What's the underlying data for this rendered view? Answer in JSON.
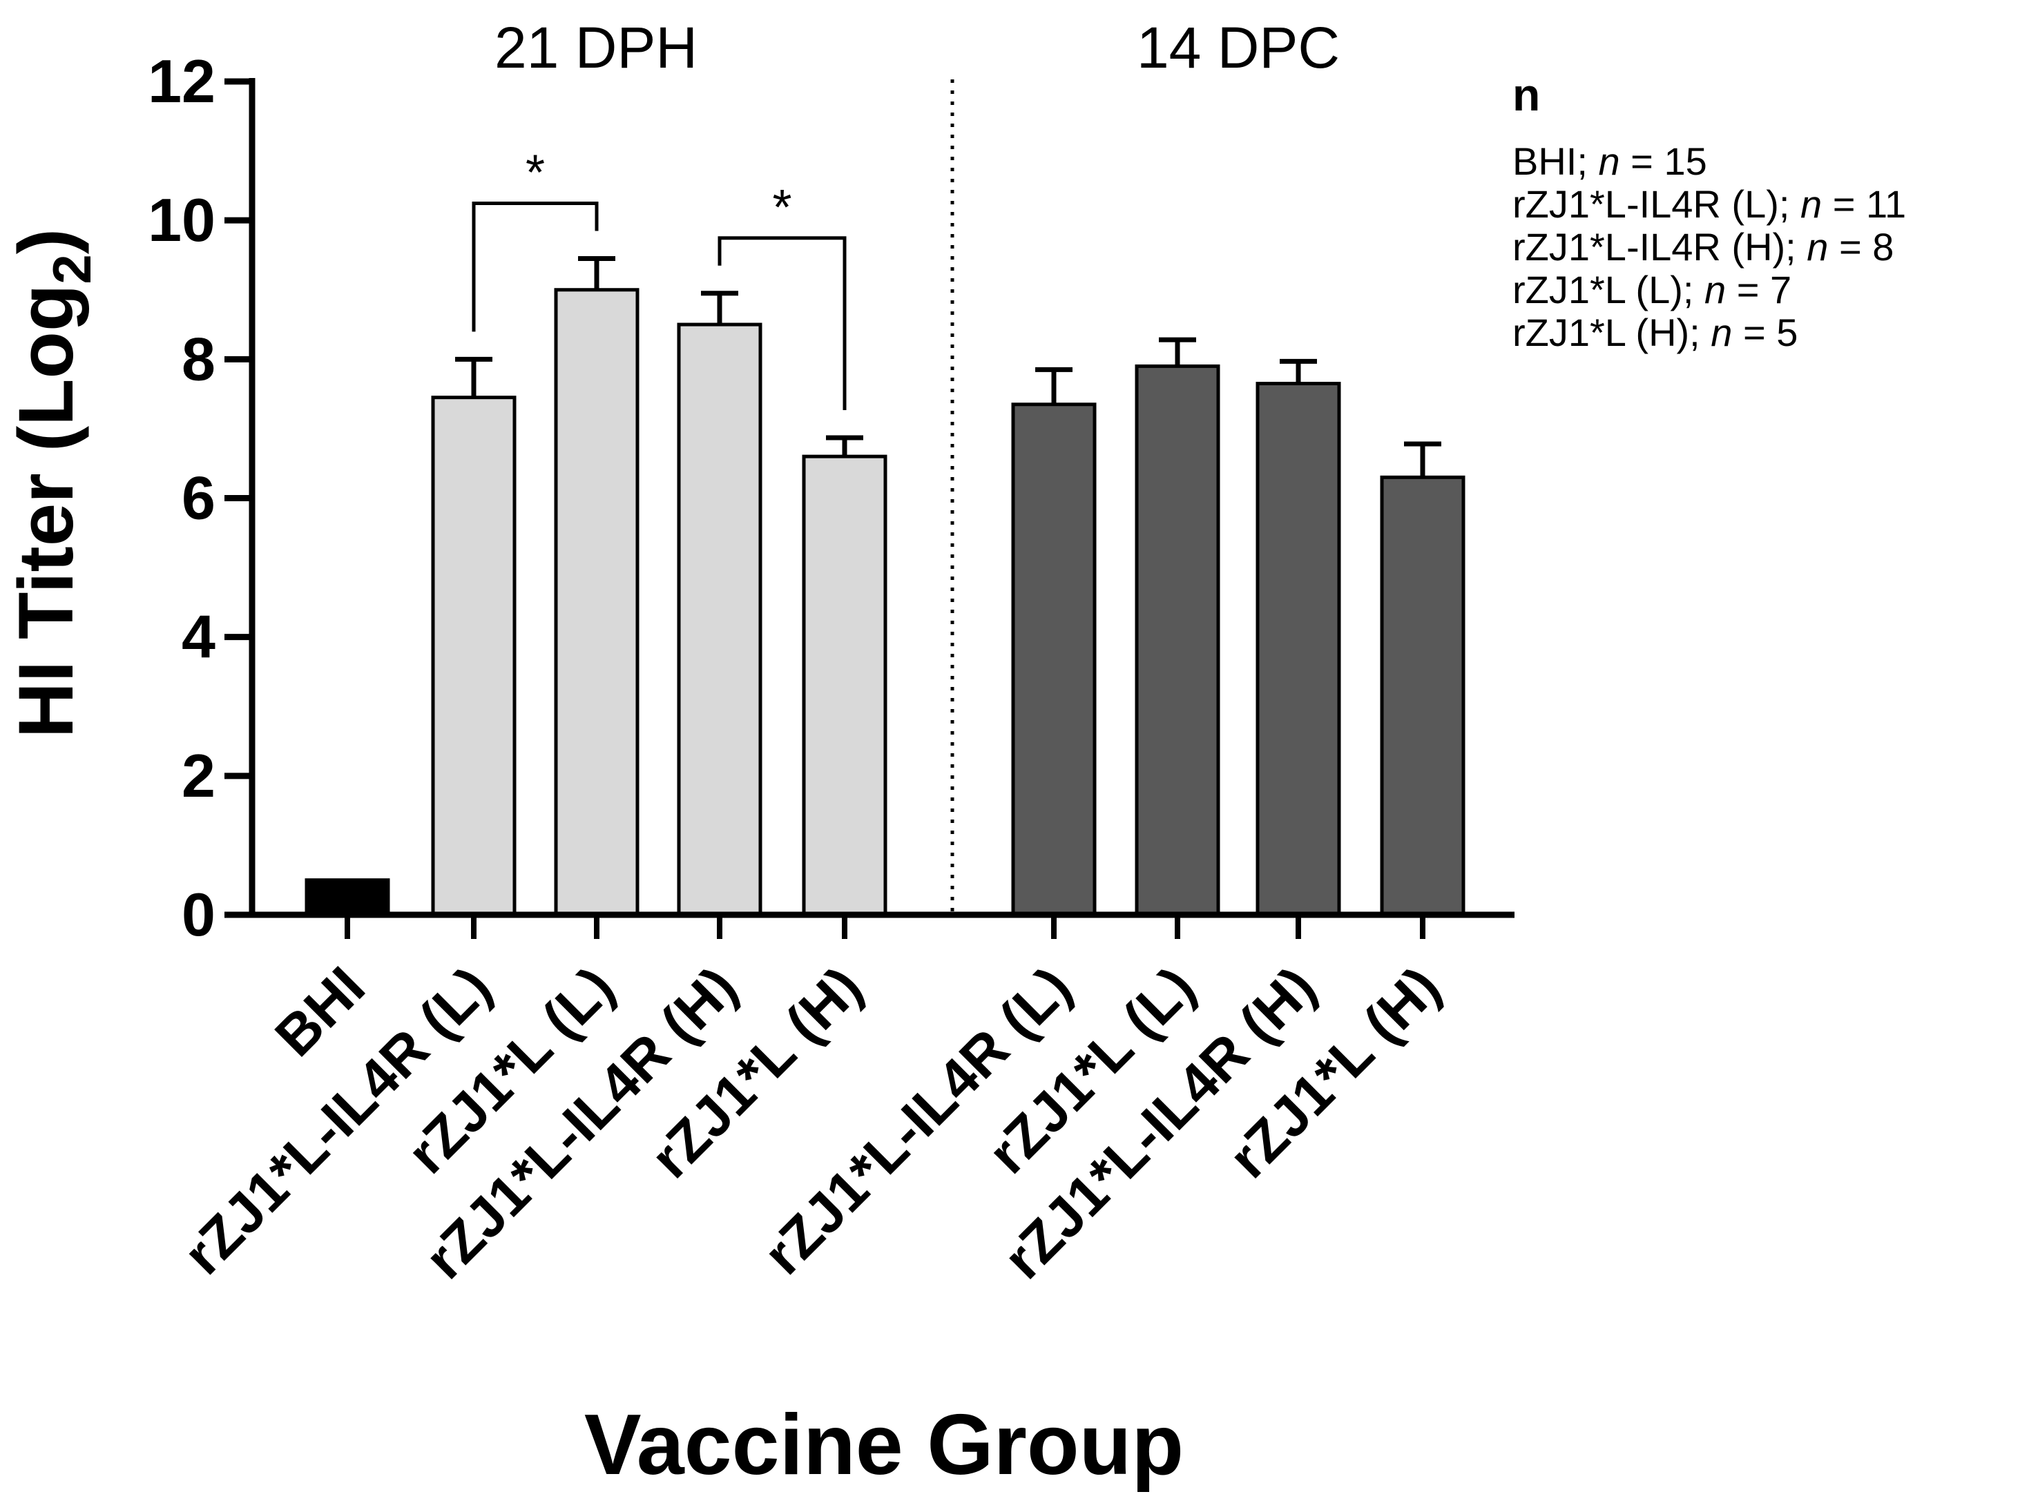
{
  "chart_data": {
    "type": "bar",
    "ylabel_main": "HI Titer (Log",
    "ylabel_sub": "2",
    "ylabel_close": ")",
    "xlabel": "Vaccine Group",
    "ylim": [
      0,
      12
    ],
    "yticks": [
      "0",
      "2",
      "4",
      "6",
      "8",
      "10",
      "12"
    ],
    "groups": [
      {
        "label": "21 DPH",
        "bar_indices": [
          0,
          1,
          2,
          3,
          4
        ]
      },
      {
        "label": "14 DPC",
        "bar_indices": [
          5,
          6,
          7,
          8
        ]
      }
    ],
    "bars": [
      {
        "category": "BHI",
        "value": 0.5,
        "error": 0,
        "color": "#000000",
        "group": "21 DPH"
      },
      {
        "category": "rZJ1*L-IL4R (L)",
        "value": 7.45,
        "error": 0.55,
        "color": "#d9d9d9",
        "group": "21 DPH"
      },
      {
        "category": "rZJ1*L (L)",
        "value": 9.0,
        "error": 0.45,
        "color": "#d9d9d9",
        "group": "21 DPH"
      },
      {
        "category": "rZJ1*L-IL4R (H)",
        "value": 8.5,
        "error": 0.45,
        "color": "#d9d9d9",
        "group": "21 DPH"
      },
      {
        "category": "rZJ1*L (H)",
        "value": 6.6,
        "error": 0.27,
        "color": "#d9d9d9",
        "group": "21 DPH"
      },
      {
        "category": "rZJ1*L-IL4R (L)",
        "value": 7.35,
        "error": 0.5,
        "color": "#595959",
        "group": "14 DPC"
      },
      {
        "category": "rZJ1*L (L)",
        "value": 7.9,
        "error": 0.38,
        "color": "#595959",
        "group": "14 DPC"
      },
      {
        "category": "rZJ1*L-IL4R (H)",
        "value": 7.65,
        "error": 0.32,
        "color": "#595959",
        "group": "14 DPC"
      },
      {
        "category": "rZJ1*L (H)",
        "value": 6.3,
        "error": 0.48,
        "color": "#595959",
        "group": "14 DPC"
      }
    ],
    "significance": [
      {
        "from": 1,
        "to": 2,
        "label": "*"
      },
      {
        "from": 3,
        "to": 4,
        "label": "*"
      }
    ],
    "legend": {
      "title": "n",
      "items": [
        {
          "prefix": "BHI; ",
          "italic": "n",
          "suffix": " = 15"
        },
        {
          "prefix": "rZJ1*L-IL4R (L); ",
          "italic": "n",
          "suffix": " = 11"
        },
        {
          "prefix": "rZJ1*L-IL4R (H); ",
          "italic": "n",
          "suffix": " = 8"
        },
        {
          "prefix": "rZJ1*L (L); ",
          "italic": "n",
          "suffix": " = 7"
        },
        {
          "prefix": "rZJ1*L (H); ",
          "italic": "n",
          "suffix": " =  5"
        }
      ]
    }
  }
}
